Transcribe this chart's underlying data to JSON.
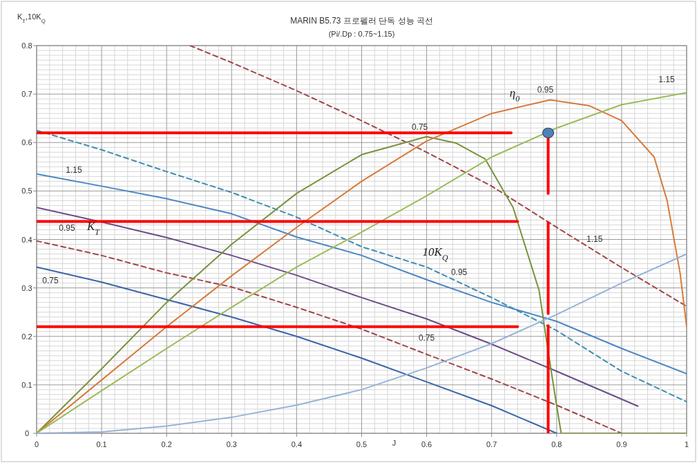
{
  "chart_data": {
    "type": "line",
    "title": "MARIN B5.73 프로펠러 단독 성능 곡선",
    "subtitle": "(Pi/.Dp : 0.75~1.15)",
    "xlabel": "J",
    "ylabel": "K$_{T}$,10K$_{Q}$",
    "xlim": [
      0,
      1
    ],
    "ylim": [
      0,
      0.8
    ],
    "xticks": [
      0,
      0.1,
      0.2,
      0.3,
      0.4,
      0.5,
      0.6,
      0.7,
      0.8,
      0.9,
      1
    ],
    "yticks": [
      0,
      0.1,
      0.2,
      0.3,
      0.4,
      0.5,
      0.6,
      0.7,
      0.8
    ],
    "grid": true,
    "marker": "none",
    "series": [
      {
        "name": "0.75",
        "color": "#3a64a8",
        "line_style": "solid",
        "x": [
          0,
          0.1,
          0.2,
          0.3,
          0.4,
          0.5,
          0.6,
          0.7,
          0.8
        ],
        "values": [
          0.343,
          0.312,
          0.276,
          0.24,
          0.2,
          0.155,
          0.106,
          0.057,
          0
        ]
      },
      {
        "name": "0.95",
        "color": "#6b4c8a",
        "line_style": "solid",
        "x": [
          0,
          0.1,
          0.2,
          0.3,
          0.4,
          0.5,
          0.6,
          0.7,
          0.8,
          0.925
        ],
        "values": [
          0.466,
          0.436,
          0.404,
          0.367,
          0.326,
          0.28,
          0.236,
          0.184,
          0.128,
          0.056
        ]
      },
      {
        "name": "1.15",
        "color": "#4a86c5",
        "line_style": "solid",
        "x": [
          0,
          0.1,
          0.2,
          0.3,
          0.4,
          0.5,
          0.6,
          0.7,
          0.8,
          0.9,
          1
        ],
        "values": [
          0.535,
          0.51,
          0.484,
          0.453,
          0.405,
          0.367,
          0.317,
          0.27,
          0.231,
          0.175,
          0.123
        ]
      },
      {
        "name": "0.75",
        "color": "#a04545",
        "line_style": "dashed",
        "x": [
          0,
          0.1,
          0.2,
          0.3,
          0.4,
          0.5,
          0.6,
          0.7,
          0.8,
          0.9
        ],
        "values": [
          0.397,
          0.367,
          0.331,
          0.302,
          0.26,
          0.215,
          0.163,
          0.112,
          0.058,
          0
        ]
      },
      {
        "name": "0.95",
        "color": "#3b8db0",
        "line_style": "dashed",
        "x": [
          0,
          0.1,
          0.2,
          0.3,
          0.4,
          0.5,
          0.6,
          0.7,
          0.8,
          0.9,
          1
        ],
        "values": [
          0.625,
          0.585,
          0.54,
          0.497,
          0.446,
          0.385,
          0.343,
          0.28,
          0.212,
          0.128,
          0.065
        ]
      },
      {
        "name": "1.15",
        "color": "#a04545",
        "line_style": "dashed",
        "x": [
          0.236,
          0.3,
          0.4,
          0.5,
          0.6,
          0.7,
          0.8,
          0.9,
          1
        ],
        "values": [
          0.8,
          0.765,
          0.707,
          0.645,
          0.58,
          0.51,
          0.425,
          0.342,
          0.262
        ]
      },
      {
        "name": "0.75",
        "color": "#77933c",
        "line_style": "solid",
        "x": [
          0,
          0.1,
          0.2,
          0.3,
          0.4,
          0.5,
          0.6,
          0.645,
          0.69,
          0.733,
          0.773,
          0.786,
          0.8,
          0.807,
          0.9,
          1
        ],
        "values": [
          0,
          0.133,
          0.27,
          0.39,
          0.495,
          0.575,
          0.612,
          0.599,
          0.566,
          0.466,
          0.295,
          0.177,
          0.057,
          0,
          0,
          0
        ]
      },
      {
        "name": "0.95",
        "color": "#d7793a",
        "line_style": "solid",
        "x": [
          0,
          0.1,
          0.2,
          0.3,
          0.4,
          0.5,
          0.6,
          0.7,
          0.79,
          0.85,
          0.9,
          0.95,
          0.97,
          0.99,
          1
        ],
        "values": [
          0,
          0.11,
          0.22,
          0.325,
          0.425,
          0.52,
          0.603,
          0.66,
          0.688,
          0.676,
          0.645,
          0.57,
          0.48,
          0.33,
          0.22
        ]
      },
      {
        "name": "1.15",
        "color": "#9bbb59",
        "line_style": "solid",
        "x": [
          0,
          0.1,
          0.2,
          0.3,
          0.4,
          0.5,
          0.6,
          0.7,
          0.8,
          0.9,
          1
        ],
        "values": [
          0,
          0.088,
          0.175,
          0.26,
          0.343,
          0.415,
          0.49,
          0.57,
          0.63,
          0.678,
          0.703
        ]
      },
      {
        "color": "#95b3d7",
        "line_style": "solid",
        "x": [
          0,
          0.1,
          0.2,
          0.3,
          0.4,
          0.5,
          0.6,
          0.7,
          0.8,
          0.9,
          1
        ],
        "values": [
          0,
          0.003,
          0.015,
          0.033,
          0.058,
          0.09,
          0.135,
          0.185,
          0.245,
          0.31,
          0.37
        ]
      },
      {
        "type": "scatter",
        "marker": "circle",
        "color": "#4f81bd",
        "x": [
          0.787
        ],
        "values": [
          0.62
        ]
      },
      {
        "color": "#ff0000",
        "line_style": "solid",
        "x": [
          0.73,
          0
        ],
        "values": [
          0.62,
          0.62
        ]
      },
      {
        "color": "#ff0000",
        "line_style": "solid",
        "x": [
          0.74,
          0
        ],
        "values": [
          0.437,
          0.437
        ]
      },
      {
        "color": "#ff0000",
        "line_style": "solid",
        "x": [
          0.74,
          0
        ],
        "values": [
          0.22,
          0.22
        ]
      },
      {
        "color": "#ff0000",
        "line_style": "solid",
        "x": [
          0.787,
          0.787
        ],
        "values": [
          0,
          0.222
        ]
      },
      {
        "color": "#ff0000",
        "line_style": "solid",
        "x": [
          0.787,
          0.787
        ],
        "values": [
          0.247,
          0.435
        ]
      },
      {
        "color": "#ff0000",
        "line_style": "solid",
        "x": [
          0.787,
          0.787
        ],
        "values": [
          0.495,
          0.612
        ]
      }
    ],
    "annotations": [
      "K$_{T}$",
      "10K$_{Q}$",
      "η$_{0}$"
    ]
  }
}
